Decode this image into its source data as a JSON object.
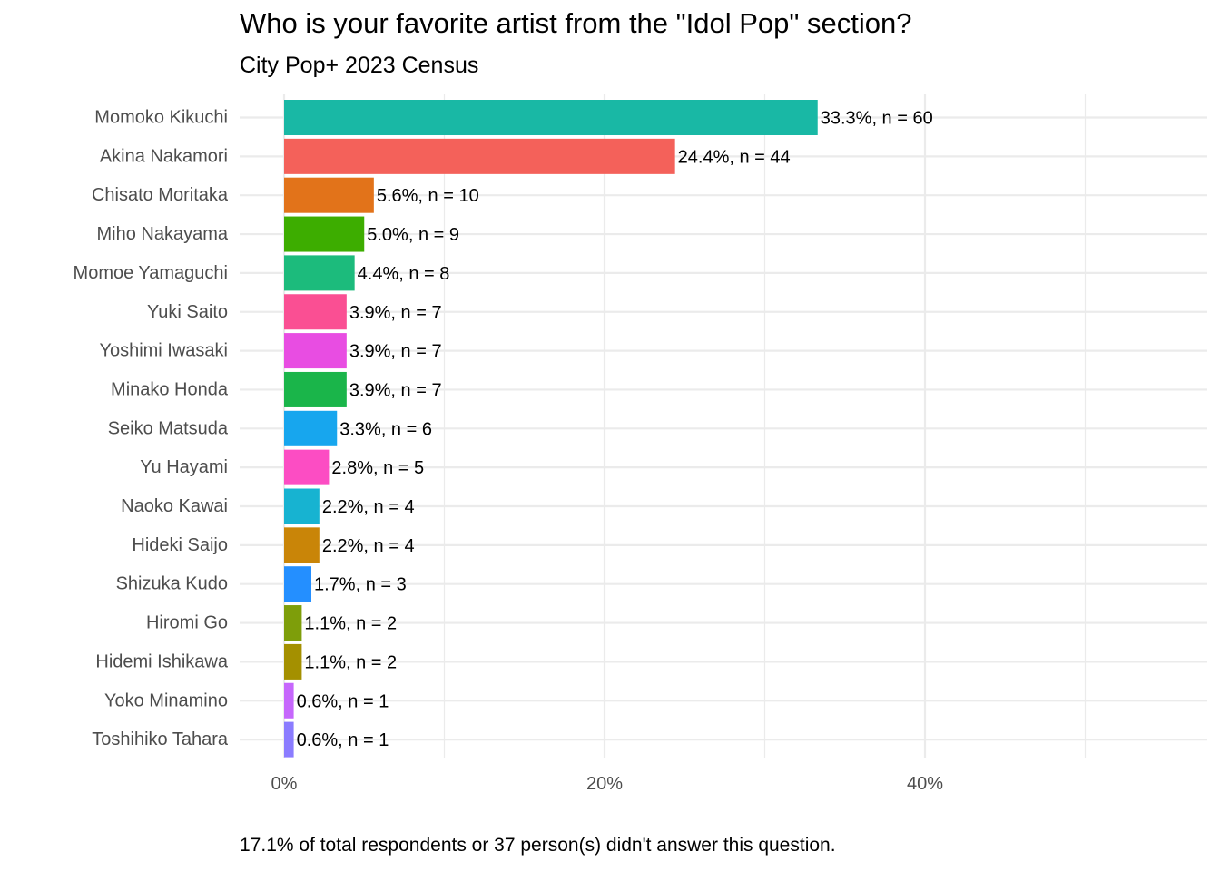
{
  "chart_data": {
    "type": "bar",
    "orientation": "horizontal",
    "title": "Who is your favorite artist from the \"Idol Pop\" section?",
    "subtitle": "City Pop+ 2023 Census",
    "caption": "17.1% of total respondents or 37 person(s) didn't answer this question.",
    "xlabel": "",
    "ylabel": "",
    "xlim": [
      0,
      57.5
    ],
    "x_ticks": [
      0,
      20,
      40
    ],
    "x_tick_labels": [
      "0%",
      "20%",
      "40%"
    ],
    "grid": true,
    "legend": "none",
    "categories": [
      "Momoko Kikuchi",
      "Akina Nakamori",
      "Chisato Moritaka",
      "Miho Nakayama",
      "Momoe Yamaguchi",
      "Yuki Saito",
      "Yoshimi Iwasaki",
      "Minako Honda",
      "Seiko Matsuda",
      "Yu Hayami",
      "Naoko Kawai",
      "Hideki Saijo",
      "Shizuka Kudo",
      "Hiromi Go",
      "Hidemi Ishikawa",
      "Yoko Minamino",
      "Toshihiko Tahara"
    ],
    "values": [
      33.3,
      24.4,
      5.6,
      5.0,
      4.4,
      3.9,
      3.9,
      3.9,
      3.3,
      2.8,
      2.2,
      2.2,
      1.7,
      1.1,
      1.1,
      0.6,
      0.6
    ],
    "data_labels": [
      "33.3%, n = 60",
      "24.4%, n = 44",
      "5.6%, n = 10",
      "5.0%, n = 9",
      "4.4%, n = 8",
      "3.9%, n = 7",
      "3.9%, n = 7",
      "3.9%, n = 7",
      "3.3%, n = 6",
      "2.8%, n = 5",
      "2.2%, n = 4",
      "2.2%, n = 4",
      "1.7%, n = 3",
      "1.1%, n = 2",
      "1.1%, n = 2",
      "0.6%, n = 1",
      "0.6%, n = 1"
    ],
    "colors": [
      "#19B8A5",
      "#F4615A",
      "#E2731A",
      "#3DAD00",
      "#1CBB7C",
      "#FA4F93",
      "#E84DE2",
      "#1AB54A",
      "#17A6EE",
      "#FC4DC3",
      "#17B3D1",
      "#C98508",
      "#248FFF",
      "#7E9E0A",
      "#A49000",
      "#C667FC",
      "#8B7CFF"
    ]
  }
}
